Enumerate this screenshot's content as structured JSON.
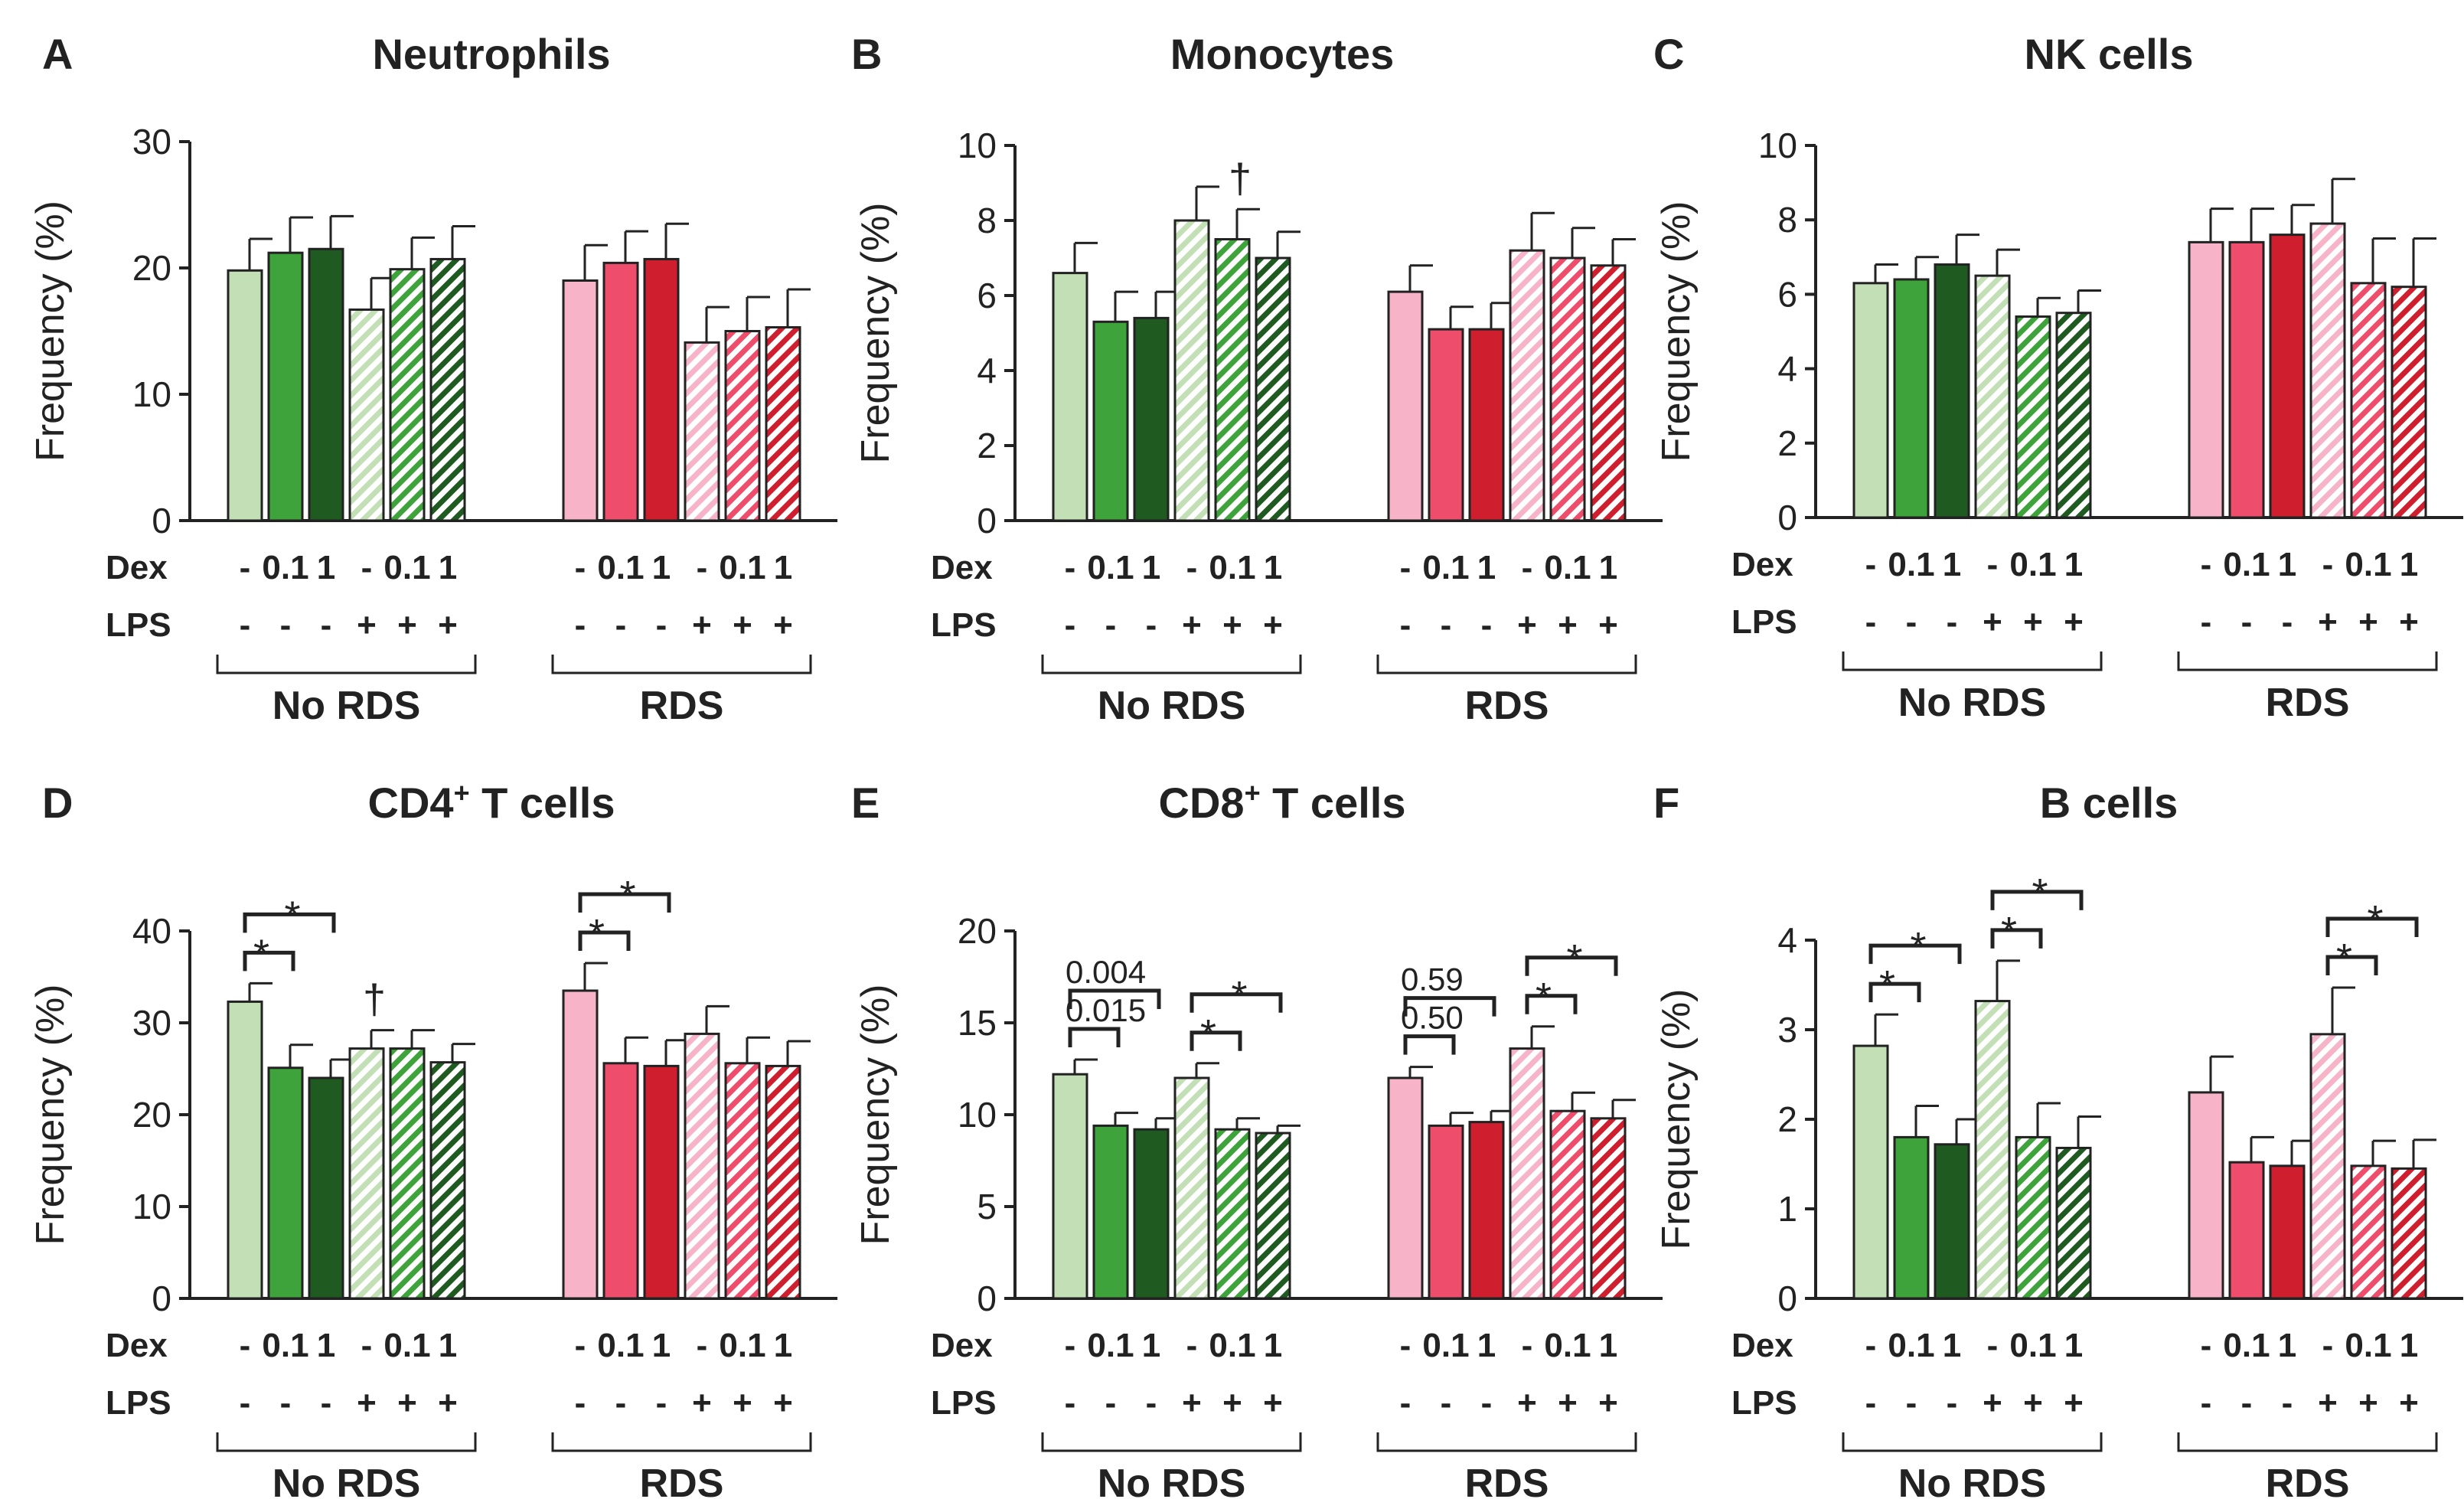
{
  "colors": {
    "green": [
      "#c2dfb6",
      "#3ea33a",
      "#1f5a20"
    ],
    "red": [
      "#f7b3c8",
      "#ee4d6b",
      "#cf1e2e"
    ],
    "stroke": "#222222"
  },
  "labels": {
    "dex": "Dex",
    "lps": "LPS",
    "dex_values": [
      "-",
      "0.1",
      "1",
      "-",
      "0.1",
      "1"
    ],
    "lps_values": [
      "-",
      "-",
      "-",
      "+",
      "+",
      "+"
    ],
    "group1": "No RDS",
    "group2": "RDS"
  },
  "chart_data": [
    {
      "type": "bar",
      "panel": "A",
      "title": "Neutrophils",
      "ylabel": "Frequency (%)",
      "ylim": [
        0,
        30
      ],
      "yticks": [
        0,
        10,
        20,
        30
      ],
      "groups": [
        "No RDS",
        "RDS"
      ],
      "series": [
        {
          "name": "No RDS",
          "values": [
            19.8,
            21.2,
            21.5,
            16.7,
            19.9,
            20.7
          ],
          "errors": [
            2.5,
            2.8,
            2.6,
            2.5,
            2.5,
            2.6
          ]
        },
        {
          "name": "RDS",
          "values": [
            19.0,
            20.4,
            20.7,
            14.1,
            15.0,
            15.3
          ],
          "errors": [
            2.8,
            2.5,
            2.8,
            2.8,
            2.7,
            3.0
          ]
        }
      ],
      "annotations": []
    },
    {
      "type": "bar",
      "panel": "B",
      "title": "Monocytes",
      "ylabel": "Frequency (%)",
      "ylim": [
        0,
        10
      ],
      "yticks": [
        0,
        2,
        4,
        6,
        8,
        10
      ],
      "groups": [
        "No RDS",
        "RDS"
      ],
      "series": [
        {
          "name": "No RDS",
          "values": [
            6.6,
            5.3,
            5.4,
            8.0,
            7.5,
            7.0
          ],
          "errors": [
            0.8,
            0.8,
            0.7,
            0.9,
            0.8,
            0.7
          ]
        },
        {
          "name": "RDS",
          "values": [
            6.1,
            5.1,
            5.1,
            7.2,
            7.0,
            6.8
          ],
          "errors": [
            0.7,
            0.6,
            0.7,
            1.0,
            0.8,
            0.7
          ]
        }
      ],
      "annotations": [
        {
          "text": "†",
          "group": 0,
          "bar": 4
        }
      ]
    },
    {
      "type": "bar",
      "panel": "C",
      "title": "NK cells",
      "ylabel": "Frequency (%)",
      "ylim": [
        0,
        10
      ],
      "yticks": [
        0,
        2,
        4,
        6,
        8,
        10
      ],
      "groups": [
        "No RDS",
        "RDS"
      ],
      "series": [
        {
          "name": "No RDS",
          "values": [
            6.3,
            6.4,
            6.8,
            6.5,
            5.4,
            5.5
          ],
          "errors": [
            0.5,
            0.6,
            0.8,
            0.7,
            0.5,
            0.6
          ]
        },
        {
          "name": "RDS",
          "values": [
            7.4,
            7.4,
            7.6,
            7.9,
            6.3,
            6.2
          ],
          "errors": [
            0.9,
            0.9,
            0.8,
            1.2,
            1.2,
            1.3
          ]
        }
      ],
      "annotations": []
    },
    {
      "type": "bar",
      "panel": "D",
      "title": "CD4",
      "title_sup": "+",
      "title_rest": " T cells",
      "ylabel": "Frequency (%)",
      "ylim": [
        0,
        40
      ],
      "yticks": [
        0,
        10,
        20,
        30,
        40
      ],
      "groups": [
        "No RDS",
        "RDS"
      ],
      "series": [
        {
          "name": "No RDS",
          "values": [
            32.3,
            25.1,
            24.0,
            27.2,
            27.2,
            25.7
          ],
          "errors": [
            2.0,
            2.5,
            2.0,
            2.0,
            2.0,
            2.0
          ]
        },
        {
          "name": "RDS",
          "values": [
            33.5,
            25.6,
            25.3,
            28.8,
            25.6,
            25.3
          ],
          "errors": [
            3.0,
            2.8,
            2.8,
            3.0,
            2.8,
            2.7
          ]
        }
      ],
      "annotations": [
        {
          "text": "†",
          "group": 0,
          "bar": 3
        }
      ],
      "brackets": [
        {
          "group": 0,
          "from": 0,
          "to": 1,
          "level": 0,
          "label": "*"
        },
        {
          "group": 0,
          "from": 0,
          "to": 2,
          "level": 1,
          "label": "*"
        },
        {
          "group": 1,
          "from": 0,
          "to": 1,
          "level": 0,
          "label": "*"
        },
        {
          "group": 1,
          "from": 0,
          "to": 2,
          "level": 1,
          "label": "*"
        }
      ]
    },
    {
      "type": "bar",
      "panel": "E",
      "title": "CD8",
      "title_sup": "+",
      "title_rest": " T cells",
      "ylabel": "Frequency (%)",
      "ylim": [
        0,
        20
      ],
      "yticks": [
        0,
        5,
        10,
        15,
        20
      ],
      "groups": [
        "No RDS",
        "RDS"
      ],
      "series": [
        {
          "name": "No RDS",
          "values": [
            12.2,
            9.4,
            9.2,
            12.0,
            9.2,
            9.0
          ],
          "errors": [
            0.8,
            0.7,
            0.6,
            0.8,
            0.6,
            0.4
          ]
        },
        {
          "name": "RDS",
          "values": [
            12.0,
            9.4,
            9.6,
            13.6,
            10.2,
            9.8
          ],
          "errors": [
            0.6,
            0.7,
            0.6,
            1.2,
            1.0,
            1.0
          ]
        }
      ],
      "annotations": [],
      "brackets": [
        {
          "group": 0,
          "from": 0,
          "to": 1,
          "level": 0,
          "label": "0.015"
        },
        {
          "group": 0,
          "from": 0,
          "to": 2,
          "level": 1,
          "label": "0.004"
        },
        {
          "group": 0,
          "from": 3,
          "to": 4,
          "level": 0,
          "label": "*"
        },
        {
          "group": 0,
          "from": 3,
          "to": 5,
          "level": 1,
          "label": "*"
        },
        {
          "group": 1,
          "from": 0,
          "to": 1,
          "level": 0,
          "label": "0.50"
        },
        {
          "group": 1,
          "from": 0,
          "to": 2,
          "level": 1,
          "label": "0.59"
        },
        {
          "group": 1,
          "from": 3,
          "to": 4,
          "level": 0,
          "label": "*"
        },
        {
          "group": 1,
          "from": 3,
          "to": 5,
          "level": 1,
          "label": "*"
        }
      ]
    },
    {
      "type": "bar",
      "panel": "F",
      "title": "B cells",
      "ylabel": "Frequency (%)",
      "ylim": [
        0,
        4
      ],
      "yticks": [
        0,
        1,
        2,
        3,
        4
      ],
      "groups": [
        "No RDS",
        "RDS"
      ],
      "series": [
        {
          "name": "No RDS",
          "values": [
            2.82,
            1.8,
            1.72,
            3.32,
            1.8,
            1.68
          ],
          "errors": [
            0.35,
            0.35,
            0.28,
            0.45,
            0.38,
            0.35
          ]
        },
        {
          "name": "RDS",
          "values": [
            2.3,
            1.52,
            1.48,
            2.95,
            1.48,
            1.45
          ],
          "errors": [
            0.4,
            0.28,
            0.28,
            0.52,
            0.28,
            0.32
          ]
        }
      ],
      "annotations": [],
      "brackets": [
        {
          "group": 0,
          "from": 0,
          "to": 1,
          "level": 0,
          "label": "*"
        },
        {
          "group": 0,
          "from": 0,
          "to": 2,
          "level": 1,
          "label": "*"
        },
        {
          "group": 0,
          "from": 3,
          "to": 4,
          "level": 0,
          "label": "*"
        },
        {
          "group": 0,
          "from": 3,
          "to": 5,
          "level": 1,
          "label": "*"
        },
        {
          "group": 1,
          "from": 3,
          "to": 4,
          "level": 0,
          "label": "*"
        },
        {
          "group": 1,
          "from": 3,
          "to": 5,
          "level": 1,
          "label": "*"
        }
      ]
    }
  ]
}
